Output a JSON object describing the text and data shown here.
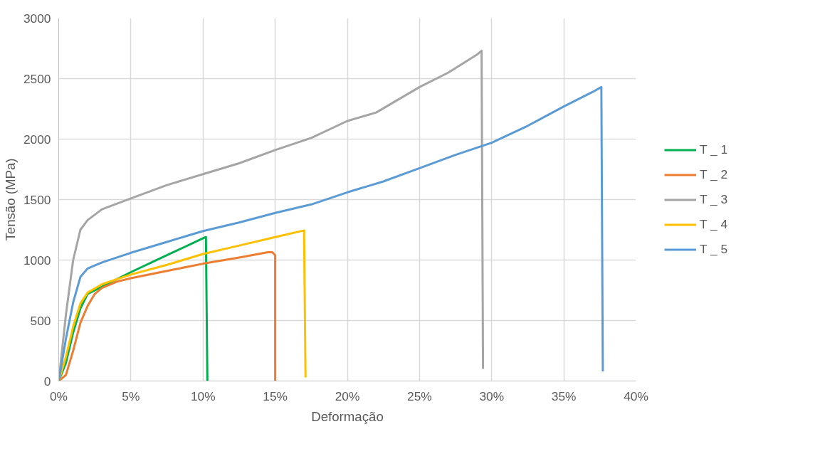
{
  "chart_data": {
    "type": "line",
    "xlabel": "Deformação",
    "ylabel": "Tensão (MPa)",
    "xlim": [
      0,
      0.4
    ],
    "ylim": [
      0,
      3000
    ],
    "xticks": [
      {
        "value": 0,
        "label": "0%"
      },
      {
        "value": 0.05,
        "label": "5%"
      },
      {
        "value": 0.1,
        "label": "10%"
      },
      {
        "value": 0.15,
        "label": "15%"
      },
      {
        "value": 0.2,
        "label": "20%"
      },
      {
        "value": 0.25,
        "label": "25%"
      },
      {
        "value": 0.3,
        "label": "30%"
      },
      {
        "value": 0.35,
        "label": "35%"
      },
      {
        "value": 0.4,
        "label": "40%"
      }
    ],
    "yticks": [
      0,
      500,
      1000,
      1500,
      2000,
      2500,
      3000
    ],
    "grid": true,
    "legend": "right",
    "marker": "none",
    "line_style": "solid",
    "series": [
      {
        "name": "T _ 1",
        "color": "#00b050",
        "x": [
          0,
          0.005,
          0.01,
          0.015,
          0.02,
          0.05,
          0.075,
          0.1,
          0.102,
          0.103
        ],
        "values": [
          0,
          150,
          400,
          600,
          720,
          900,
          1040,
          1180,
          1190,
          0
        ]
      },
      {
        "name": "T _ 2",
        "color": "#ed7d31",
        "x": [
          0,
          0.005,
          0.01,
          0.015,
          0.02,
          0.025,
          0.03,
          0.04,
          0.05,
          0.075,
          0.1,
          0.125,
          0.145,
          0.148,
          0.15,
          0.15
        ],
        "values": [
          0,
          50,
          250,
          480,
          620,
          720,
          770,
          820,
          850,
          910,
          970,
          1020,
          1065,
          1065,
          1040,
          0
        ]
      },
      {
        "name": "T _ 3",
        "color": "#a5a5a5",
        "x": [
          0,
          0.005,
          0.01,
          0.015,
          0.02,
          0.03,
          0.05,
          0.075,
          0.1,
          0.125,
          0.15,
          0.175,
          0.2,
          0.22,
          0.25,
          0.27,
          0.29,
          0.293,
          0.294
        ],
        "values": [
          0,
          550,
          1000,
          1250,
          1330,
          1420,
          1510,
          1620,
          1710,
          1800,
          1910,
          2010,
          2150,
          2220,
          2430,
          2550,
          2700,
          2730,
          100
        ]
      },
      {
        "name": "T _ 4",
        "color": "#ffc000",
        "x": [
          0,
          0.005,
          0.01,
          0.015,
          0.02,
          0.03,
          0.05,
          0.075,
          0.1,
          0.125,
          0.15,
          0.17,
          0.171
        ],
        "values": [
          0,
          200,
          450,
          640,
          730,
          800,
          880,
          960,
          1050,
          1120,
          1190,
          1245,
          30
        ]
      },
      {
        "name": "T _ 5",
        "color": "#5b9bd5",
        "x": [
          0,
          0.005,
          0.01,
          0.015,
          0.02,
          0.03,
          0.05,
          0.075,
          0.1,
          0.125,
          0.15,
          0.175,
          0.2,
          0.225,
          0.25,
          0.275,
          0.3,
          0.325,
          0.35,
          0.37,
          0.376,
          0.377
        ],
        "values": [
          0,
          350,
          650,
          860,
          930,
          980,
          1060,
          1150,
          1240,
          1310,
          1390,
          1460,
          1560,
          1650,
          1760,
          1870,
          1970,
          2110,
          2270,
          2390,
          2430,
          80
        ]
      }
    ]
  }
}
